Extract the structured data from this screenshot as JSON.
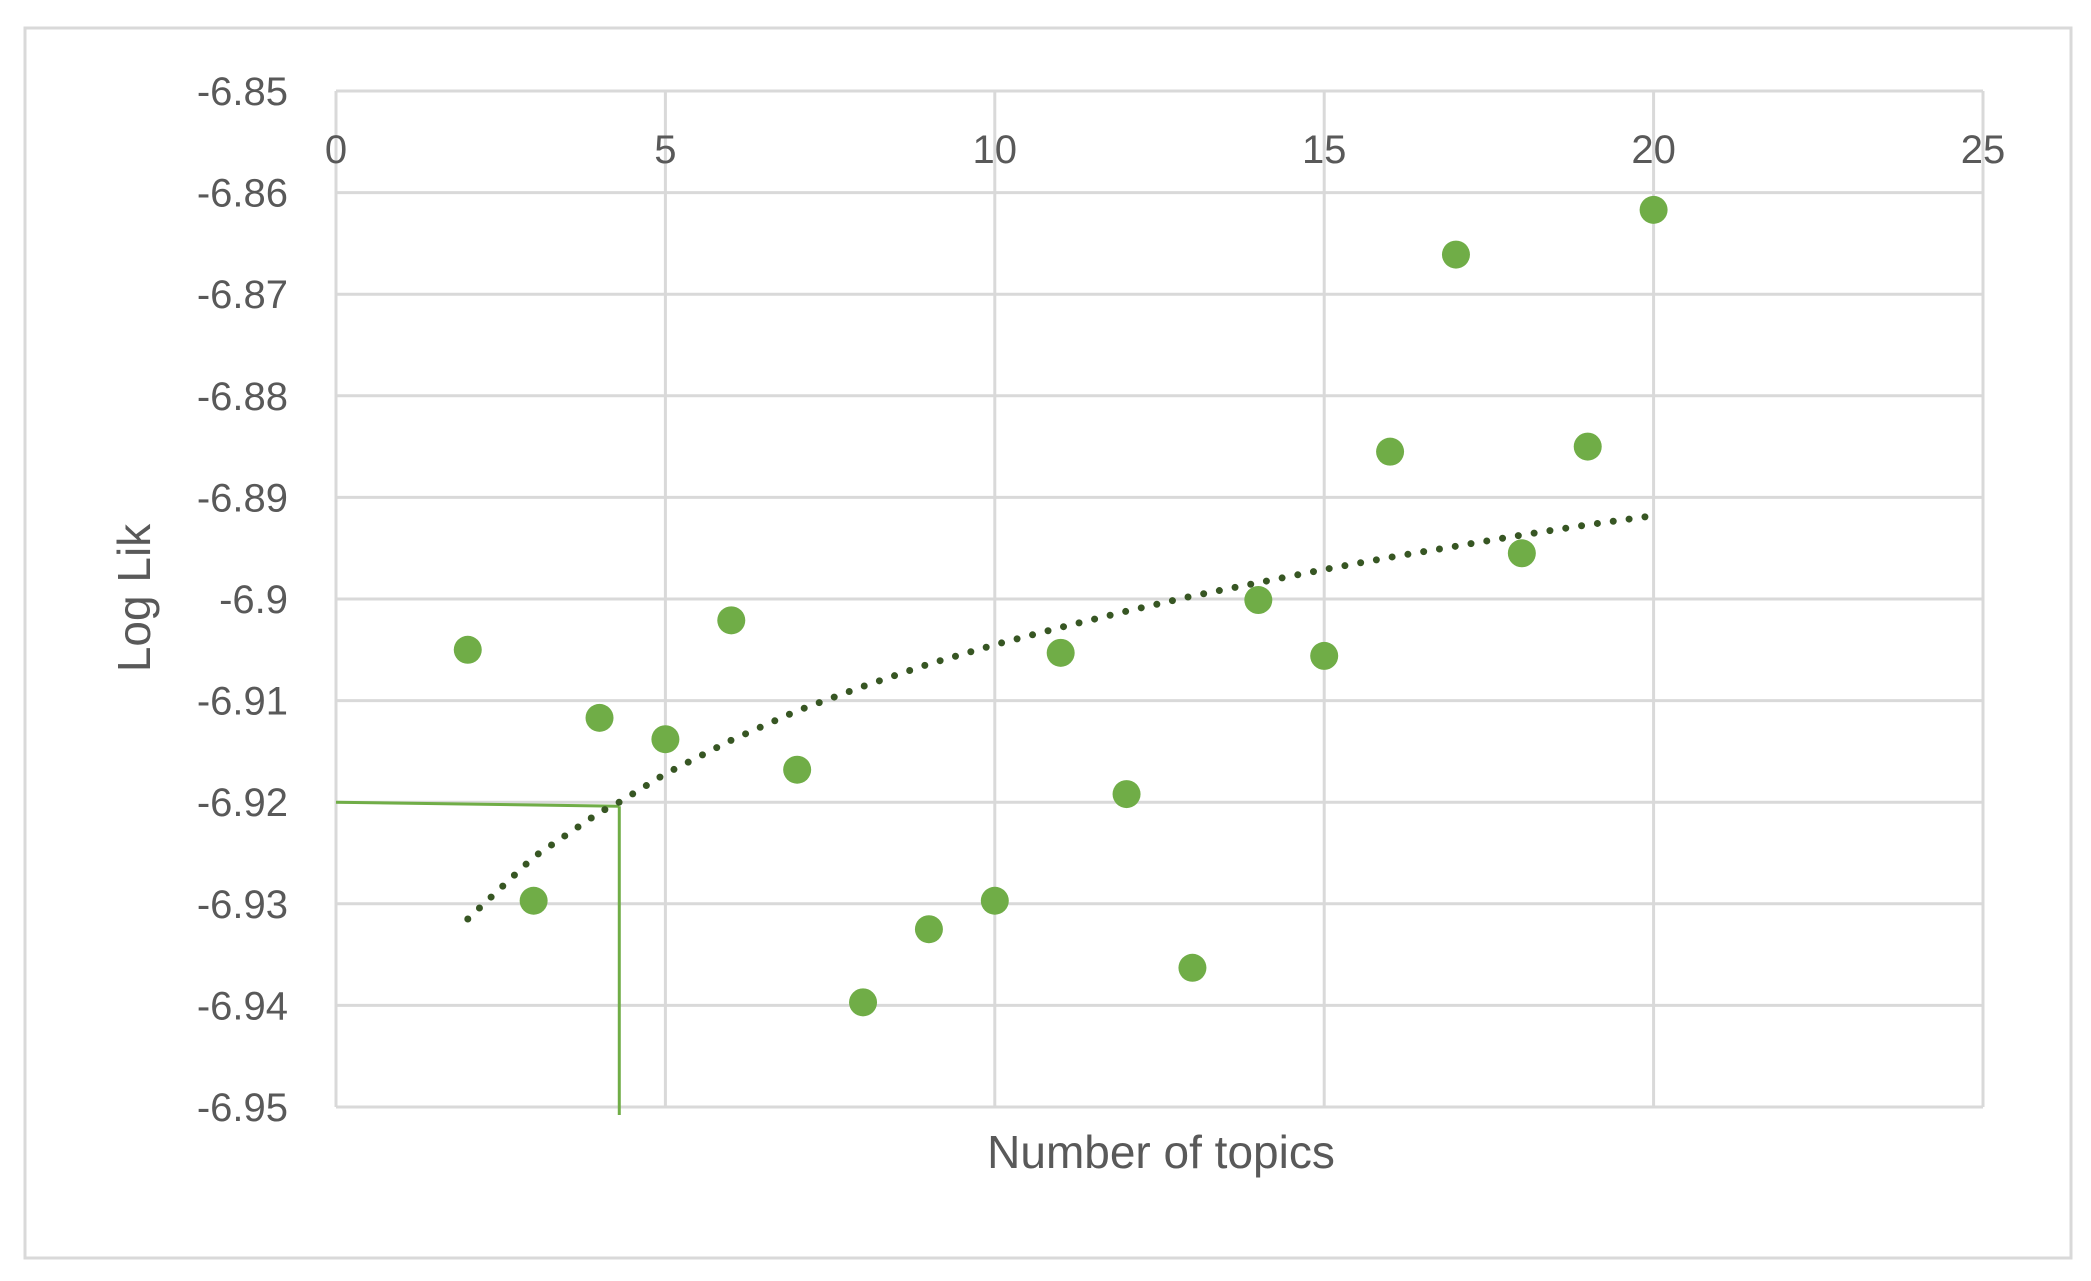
{
  "chart_data": {
    "type": "scatter",
    "xlabel": "Number of topics",
    "ylabel": "Log Lik",
    "xlim": [
      0,
      25
    ],
    "ylim": [
      -6.95,
      -6.85
    ],
    "x_ticks": [
      "0",
      "5",
      "10",
      "15",
      "20",
      "25"
    ],
    "y_ticks": [
      "-6.85",
      "-6.86",
      "-6.87",
      "-6.88",
      "-6.89",
      "-6.9",
      "-6.91",
      "-6.92",
      "-6.93",
      "-6.94",
      "-6.95"
    ],
    "x_tick_values": [
      0,
      5,
      10,
      15,
      20,
      25
    ],
    "y_tick_values": [
      -6.85,
      -6.86,
      -6.87,
      -6.88,
      -6.89,
      -6.9,
      -6.91,
      -6.92,
      -6.93,
      -6.94,
      -6.95
    ],
    "x_axis_position": "top",
    "grid": true,
    "legend": "none",
    "series": [
      {
        "x": [
          2,
          3,
          4,
          5,
          6,
          7,
          8,
          9,
          10,
          11,
          12,
          13,
          14,
          15,
          16,
          17,
          18,
          19,
          20
        ],
        "y": [
          -6.905,
          -6.9297,
          -6.9117,
          -6.9138,
          -6.9021,
          -6.9168,
          -6.9397,
          -6.9325,
          -6.9297,
          -6.9053,
          -6.9192,
          -6.9363,
          -6.9001,
          -6.9056,
          -6.8855,
          -6.8661,
          -6.8955,
          -6.885,
          -6.8617
        ],
        "color": "#70ad47"
      }
    ],
    "trendline": {
      "type": "logarithmic",
      "x": [
        2,
        3,
        4,
        4.3,
        5,
        6,
        7,
        8,
        9,
        10,
        11,
        12,
        13,
        14,
        15,
        16,
        17,
        18,
        19,
        20
      ],
      "y": [
        -6.9315,
        -6.9254,
        -6.921,
        -6.92,
        -6.9172,
        -6.9139,
        -6.911,
        -6.9086,
        -6.9064,
        -6.9045,
        -6.9028,
        -6.9012,
        -6.8997,
        -6.8984,
        -6.8971,
        -6.8959,
        -6.8948,
        -6.8937,
        -6.8927,
        -6.8918
      ],
      "color": "#375623",
      "style": "dotted"
    },
    "reference_lines": {
      "x": 4.3,
      "y": -6.92,
      "color": "#70ad47"
    }
  }
}
